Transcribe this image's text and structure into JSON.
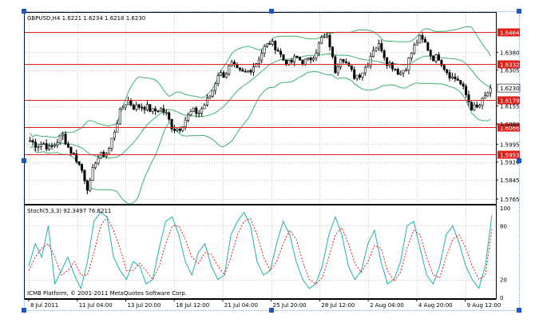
{
  "colors": {
    "background": "#ffffff",
    "grid": "#c8c8c8",
    "candle": "#000000",
    "bollinger": "#3cb371",
    "hline": "#e0201b",
    "hline_label_bg": "#e0201b",
    "stoch_main": "#20b2aa",
    "stoch_signal": "#e0201b",
    "selection_handle": "#1a56c8"
  },
  "icons": [
    "selection-handle-icon"
  ],
  "chart_data": [
    {
      "type": "candlestick",
      "title": "GBPUSD,H4  1.6221 1.6234 1.6218 1.6230",
      "symbol": "GBPUSD",
      "timeframe": "H4",
      "ohlc_header": {
        "open": 1.6221,
        "high": 1.6234,
        "low": 1.6218,
        "close": 1.623
      },
      "ylim": [
        1.5745,
        1.6545
      ],
      "y_ticks": [
        "1.6380",
        "1.6305",
        "1.6155",
        "1.6080",
        "1.5995",
        "1.5920",
        "1.5845",
        "1.5765"
      ],
      "x_ticks": [
        "8 Jul 2011",
        "11 Jul 04:00",
        "13 Jul 20:00",
        "18 Jul 12:00",
        "21 Jul 04:00",
        "25 Jul 20:00",
        "28 Jul 12:00",
        "2 Aug 04:00",
        "4 Aug 20:00",
        "9 Aug 12:00"
      ],
      "current_price_label": "1.6230",
      "current_price": 1.623,
      "horizontal_lines": [
        {
          "value": 1.6464,
          "label": "1.6464"
        },
        {
          "value": 1.6332,
          "label": "1.6332"
        },
        {
          "value": 1.6179,
          "label": "1.6179"
        },
        {
          "value": 1.6066,
          "label": "1.6066"
        },
        {
          "value": 1.5953,
          "label": "1.5953"
        }
      ],
      "close_path": [
        1.601,
        1.599,
        1.6,
        1.5975,
        1.6,
        1.6035,
        1.5975,
        1.594,
        1.5885,
        1.58,
        1.5925,
        1.595,
        1.596,
        1.605,
        1.614,
        1.618,
        1.615,
        1.6155,
        1.615,
        1.613,
        1.6145,
        1.612,
        1.606,
        1.606,
        1.61,
        1.6135,
        1.6125,
        1.6165,
        1.621,
        1.629,
        1.6285,
        1.633,
        1.63,
        1.629,
        1.631,
        1.634,
        1.6395,
        1.642,
        1.64,
        1.635,
        1.633,
        1.636,
        1.634,
        1.6345,
        1.638,
        1.644,
        1.644,
        1.63,
        1.637,
        1.632,
        1.628,
        1.629,
        1.633,
        1.64,
        1.641,
        1.634,
        1.632,
        1.629,
        1.632,
        1.639,
        1.644,
        1.6415,
        1.6355,
        1.636,
        1.631,
        1.6275,
        1.6265,
        1.6215,
        1.615,
        1.6145,
        1.6185,
        1.623
      ]
    },
    {
      "type": "line",
      "title": "Stoch(5,3,3) 92.3497 76.8211",
      "indicator": "Stoch(5,3,3)",
      "main_value": 92.3497,
      "signal_value": 76.8211,
      "ylim": [
        0,
        100
      ],
      "y_ticks": [
        "100",
        "80",
        "20",
        "0"
      ],
      "series": [
        {
          "name": "",
          "color": "#20b2aa",
          "values": [
            35,
            60,
            45,
            80,
            15,
            30,
            45,
            25,
            10,
            40,
            85,
            95,
            90,
            45,
            30,
            20,
            40,
            35,
            15,
            20,
            55,
            85,
            90,
            70,
            40,
            25,
            50,
            60,
            35,
            20,
            25,
            70,
            85,
            95,
            80,
            40,
            25,
            30,
            60,
            85,
            70,
            40,
            20,
            10,
            15,
            35,
            70,
            90,
            70,
            35,
            20,
            30,
            60,
            75,
            40,
            15,
            20,
            40,
            80,
            85,
            55,
            25,
            15,
            35,
            70,
            80,
            60,
            35,
            20,
            10,
            35,
            92
          ]
        },
        {
          "name": "",
          "color": "#e0201b",
          "values": [
            30,
            45,
            55,
            60,
            45,
            25,
            30,
            40,
            25,
            25,
            50,
            80,
            90,
            75,
            55,
            30,
            30,
            38,
            30,
            20,
            35,
            60,
            80,
            80,
            65,
            45,
            38,
            50,
            48,
            35,
            25,
            45,
            70,
            85,
            88,
            70,
            45,
            30,
            40,
            60,
            75,
            65,
            40,
            20,
            15,
            22,
            45,
            70,
            78,
            60,
            38,
            28,
            40,
            58,
            55,
            30,
            18,
            28,
            55,
            75,
            70,
            45,
            25,
            22,
            45,
            65,
            70,
            55,
            35,
            20,
            25,
            77
          ]
        }
      ]
    }
  ],
  "footer": {
    "copyright": "ICMB Platform, © 2001-2011 MetaQuotes Software Corp."
  }
}
